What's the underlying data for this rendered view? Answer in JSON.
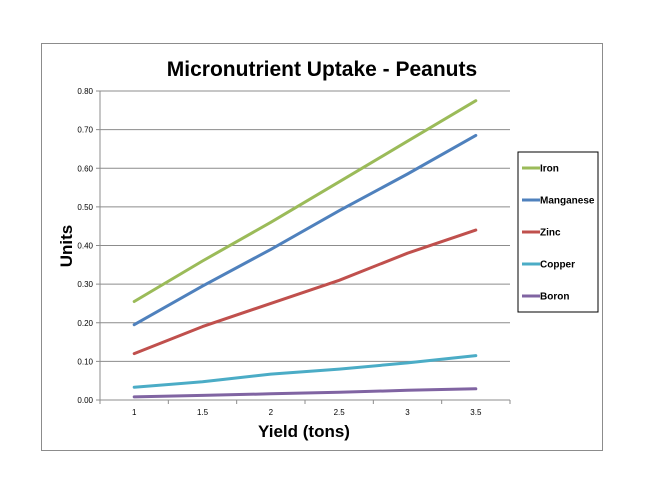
{
  "chart_data": {
    "type": "line",
    "title": "Micronutrient Uptake - Peanuts",
    "xlabel": "Yield (tons)",
    "ylabel": "Units",
    "x": [
      1,
      1.5,
      2,
      2.5,
      3,
      3.5
    ],
    "x_tick_labels": [
      "1",
      "1.5",
      "2",
      "2.5",
      "3",
      "3.5"
    ],
    "y_tick_labels": [
      "0.00",
      "0.10",
      "0.20",
      "0.30",
      "0.40",
      "0.50",
      "0.60",
      "0.70",
      "0.80"
    ],
    "ylim": [
      0,
      0.8
    ],
    "grid": "horizontal",
    "legend_position": "right",
    "series": [
      {
        "name": "Iron",
        "color": "#9BBB59",
        "values": [
          0.255,
          0.36,
          0.46,
          0.565,
          0.67,
          0.775
        ]
      },
      {
        "name": "Manganese",
        "color": "#4F81BD",
        "values": [
          0.195,
          0.295,
          0.39,
          0.49,
          0.585,
          0.685
        ]
      },
      {
        "name": "Zinc",
        "color": "#C0504D",
        "values": [
          0.12,
          0.19,
          0.25,
          0.31,
          0.38,
          0.44
        ]
      },
      {
        "name": "Copper",
        "color": "#4BACC6",
        "values": [
          0.033,
          0.047,
          0.067,
          0.08,
          0.096,
          0.115
        ]
      },
      {
        "name": "Boron",
        "color": "#8064A2",
        "values": [
          0.008,
          0.012,
          0.016,
          0.02,
          0.025,
          0.029
        ]
      }
    ]
  }
}
